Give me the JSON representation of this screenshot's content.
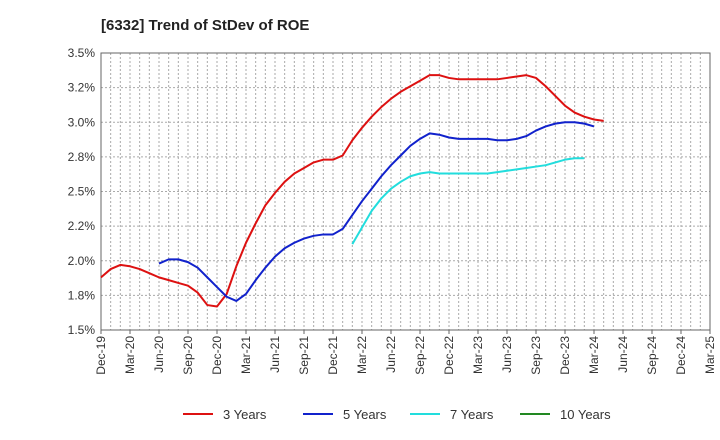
{
  "chart_data": {
    "type": "line",
    "title": "[6332]  Trend of StDev of ROE",
    "xlabel": "",
    "ylabel": "",
    "x_ticks": [
      "Dec-19",
      "Mar-20",
      "Jun-20",
      "Sep-20",
      "Dec-20",
      "Mar-21",
      "Jun-21",
      "Sep-21",
      "Dec-21",
      "Mar-22",
      "Jun-22",
      "Sep-22",
      "Dec-22",
      "Mar-23",
      "Jun-23",
      "Sep-23",
      "Dec-23",
      "Mar-24",
      "Jun-24",
      "Sep-24",
      "Dec-24",
      "Mar-25"
    ],
    "y_ticks": [
      "1.5%",
      "1.8%",
      "2.0%",
      "2.2%",
      "2.5%",
      "2.8%",
      "3.0%",
      "3.2%",
      "3.5%"
    ],
    "ylim": [
      1.5,
      3.5
    ],
    "grid": true,
    "legend_position": "bottom",
    "series": [
      {
        "name": "3 Years",
        "color": "#dd1111",
        "start_index": 0,
        "values": [
          1.88,
          1.94,
          1.97,
          1.96,
          1.94,
          1.91,
          1.88,
          1.86,
          1.84,
          1.82,
          1.77,
          1.68,
          1.67,
          1.76,
          1.96,
          2.13,
          2.27,
          2.4,
          2.49,
          2.57,
          2.63,
          2.67,
          2.71,
          2.73,
          2.73,
          2.76,
          2.87,
          2.96,
          3.04,
          3.11,
          3.17,
          3.22,
          3.26,
          3.3,
          3.34,
          3.34,
          3.32,
          3.31,
          3.31,
          3.31,
          3.31,
          3.31,
          3.32,
          3.33,
          3.34,
          3.32,
          3.26,
          3.19,
          3.12,
          3.07,
          3.04,
          3.02,
          3.01
        ]
      },
      {
        "name": "5 Years",
        "color": "#1122cc",
        "start_index": 6,
        "values": [
          1.98,
          2.01,
          2.01,
          1.99,
          1.95,
          1.88,
          1.81,
          1.74,
          1.71,
          1.76,
          1.86,
          1.95,
          2.03,
          2.09,
          2.13,
          2.16,
          2.18,
          2.19,
          2.19,
          2.23,
          2.33,
          2.43,
          2.52,
          2.61,
          2.69,
          2.76,
          2.83,
          2.88,
          2.92,
          2.91,
          2.89,
          2.88,
          2.88,
          2.88,
          2.88,
          2.87,
          2.87,
          2.88,
          2.9,
          2.94,
          2.97,
          2.99,
          3.0,
          3.0,
          2.99,
          2.97
        ]
      },
      {
        "name": "7 Years",
        "color": "#22dddd",
        "start_index": 26,
        "values": [
          2.12,
          2.24,
          2.36,
          2.45,
          2.52,
          2.57,
          2.61,
          2.63,
          2.64,
          2.63,
          2.63,
          2.63,
          2.63,
          2.63,
          2.63,
          2.64,
          2.65,
          2.66,
          2.67,
          2.68,
          2.69,
          2.71,
          2.73,
          2.74,
          2.74
        ]
      },
      {
        "name": "10 Years",
        "color": "#228822",
        "start_index": 0,
        "values": []
      }
    ]
  }
}
